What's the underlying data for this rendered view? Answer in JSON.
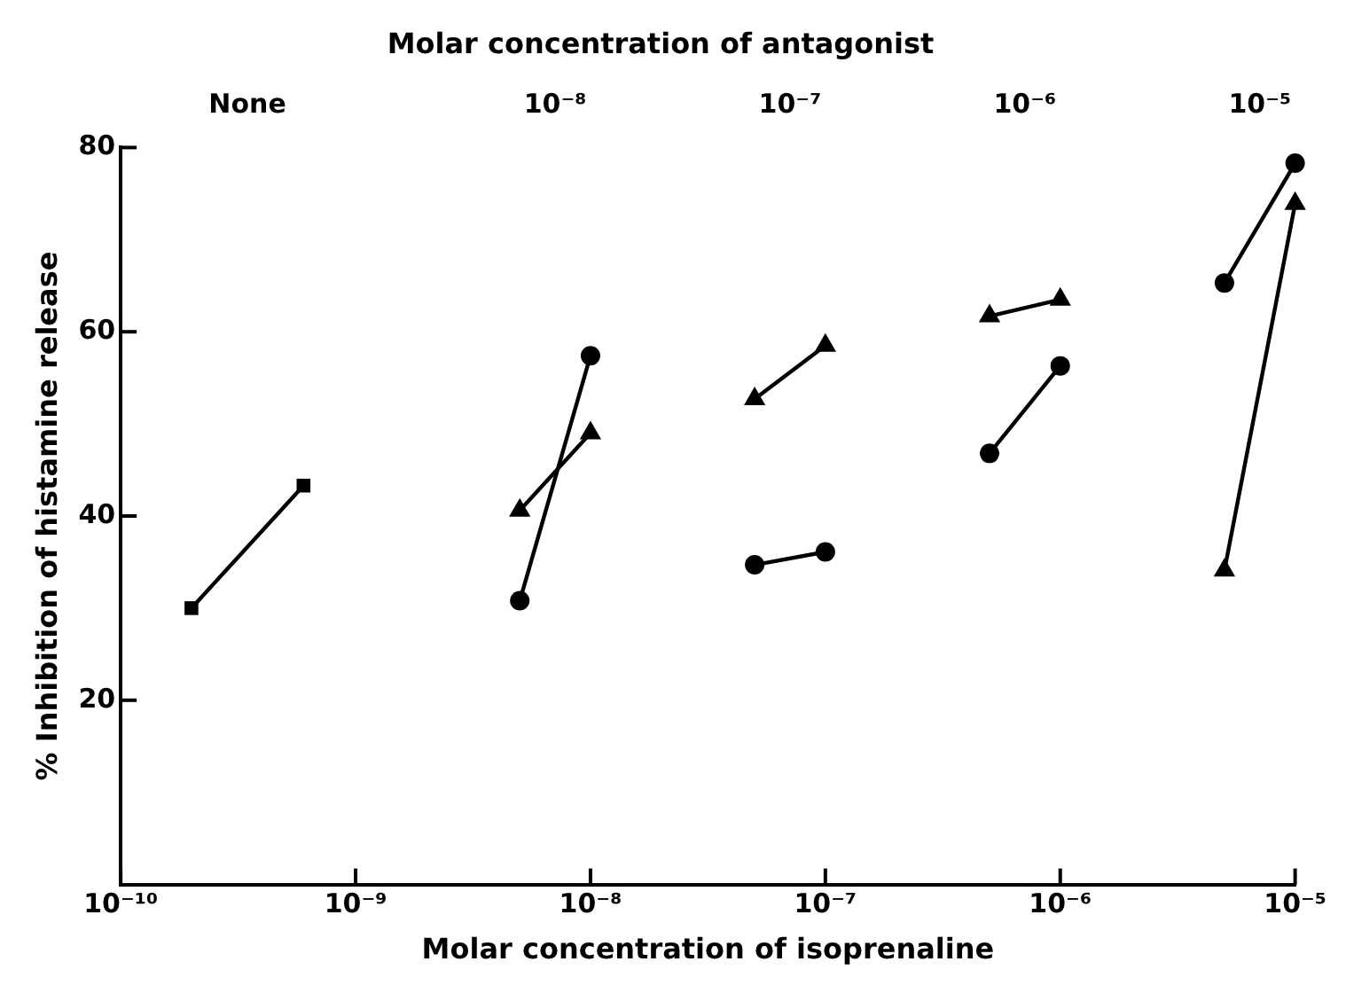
{
  "chart_data": {
    "type": "line",
    "xlabel": "Molar concentration of isoprenaline",
    "ylabel": "% Inhibition of histamine release",
    "x2label": "Molar concentration of antagonist",
    "log": "x",
    "grid": false,
    "legend": false,
    "line_style": "solid",
    "xlim": [
      1e-10,
      1e-05
    ],
    "ylim": [
      0,
      80
    ],
    "yticks": [
      20,
      40,
      60,
      80
    ],
    "xticks": [
      {
        "value": 1e-10,
        "label": "10⁻¹⁰"
      },
      {
        "value": 1e-09,
        "label": "10⁻⁹"
      },
      {
        "value": 1e-08,
        "label": "10⁻⁸"
      },
      {
        "value": 1e-07,
        "label": "10⁻⁷"
      },
      {
        "value": 1e-06,
        "label": "10⁻⁶"
      },
      {
        "value": 1e-05,
        "label": "10⁻⁵"
      }
    ],
    "annotations": [
      "None",
      "10⁻⁸",
      "10⁻⁷",
      "10⁻⁶",
      "10⁻⁵"
    ],
    "series": [
      {
        "color": "#000000",
        "marker": "square",
        "x": [
          2e-10,
          6e-10
        ],
        "values": [
          30,
          43.3
        ]
      },
      {
        "color": "#000000",
        "marker": "triangle",
        "x": [
          5e-09,
          1e-08
        ],
        "values": [
          40.6,
          49
        ]
      },
      {
        "color": "#000000",
        "marker": "circle",
        "x": [
          5e-09,
          1e-08
        ],
        "values": [
          30.8,
          57.4
        ]
      },
      {
        "color": "#000000",
        "marker": "triangle",
        "x": [
          5e-08,
          1e-07
        ],
        "values": [
          52.7,
          58.5
        ]
      },
      {
        "color": "#000000",
        "marker": "circle",
        "x": [
          5e-08,
          1e-07
        ],
        "values": [
          34.7,
          36.1
        ]
      },
      {
        "color": "#000000",
        "marker": "triangle",
        "x": [
          5e-07,
          1e-06
        ],
        "values": [
          61.7,
          63.5
        ]
      },
      {
        "color": "#000000",
        "marker": "circle",
        "x": [
          5e-07,
          1e-06
        ],
        "values": [
          46.8,
          56.3
        ]
      },
      {
        "color": "#000000",
        "marker": "circle",
        "x": [
          5e-06,
          1e-05
        ],
        "values": [
          65.3,
          78.3
        ]
      },
      {
        "color": "#000000",
        "marker": "triangle",
        "x": [
          5e-06,
          1e-05
        ],
        "values": [
          34.1,
          73.9
        ]
      }
    ]
  }
}
